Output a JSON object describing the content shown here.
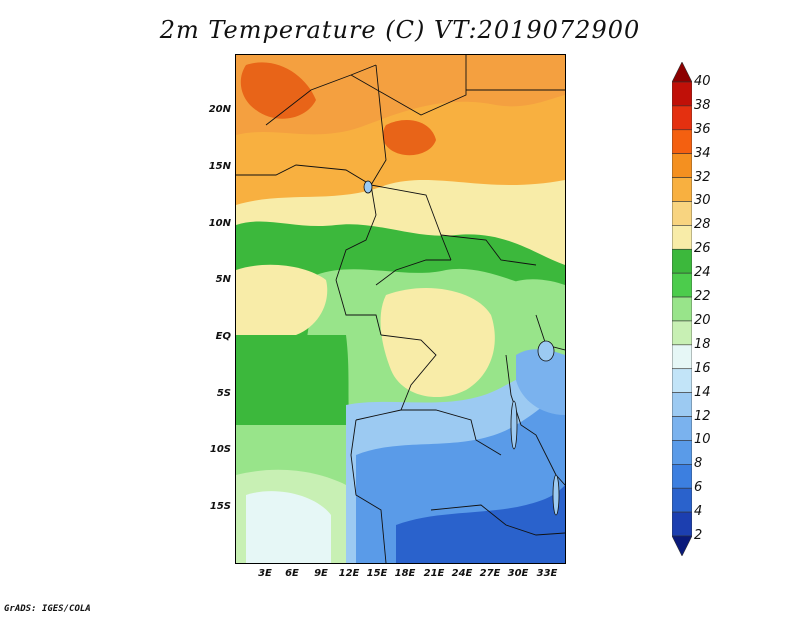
{
  "title": "2m Temperature (C) VT:2019072900",
  "footer": "GrADS: IGES/COLA",
  "map": {
    "lat_labels": [
      "20N",
      "15N",
      "10N",
      "5N",
      "EQ",
      "5S",
      "10S",
      "15S"
    ],
    "lon_labels": [
      "3E",
      "6E",
      "9E",
      "12E",
      "15E",
      "18E",
      "21E",
      "24E",
      "27E",
      "30E",
      "33E"
    ]
  },
  "colorbar": {
    "levels": [
      "2",
      "4",
      "6",
      "8",
      "10",
      "12",
      "14",
      "16",
      "18",
      "20",
      "22",
      "24",
      "26",
      "28",
      "30",
      "32",
      "34",
      "36",
      "38",
      "40"
    ],
    "colors": [
      "#0a1a7a",
      "#1c3fb0",
      "#2a62cc",
      "#3c7fe0",
      "#5a9be8",
      "#7ab2ee",
      "#9ccaf2",
      "#c2e4f8",
      "#e6f7f6",
      "#c8f0b4",
      "#98e48a",
      "#4ccc4c",
      "#3cb83c",
      "#f8eca8",
      "#f8d480",
      "#f8b040",
      "#f49020",
      "#f46010",
      "#e43010",
      "#c01008",
      "#8c0000"
    ]
  },
  "regions": {
    "colors": {
      "hot": "#f09030",
      "warm": "#f8b040",
      "tan": "#f8d480",
      "cream": "#f8eca8",
      "green": "#3cb83c",
      "lightgreen": "#98e48a",
      "palegreen": "#c8f0b4",
      "lightcyan": "#e6f7f6",
      "lightblue": "#9ccaf2",
      "blue": "#5a9be8",
      "deepblue": "#2a62cc",
      "red": "#e86418"
    }
  }
}
